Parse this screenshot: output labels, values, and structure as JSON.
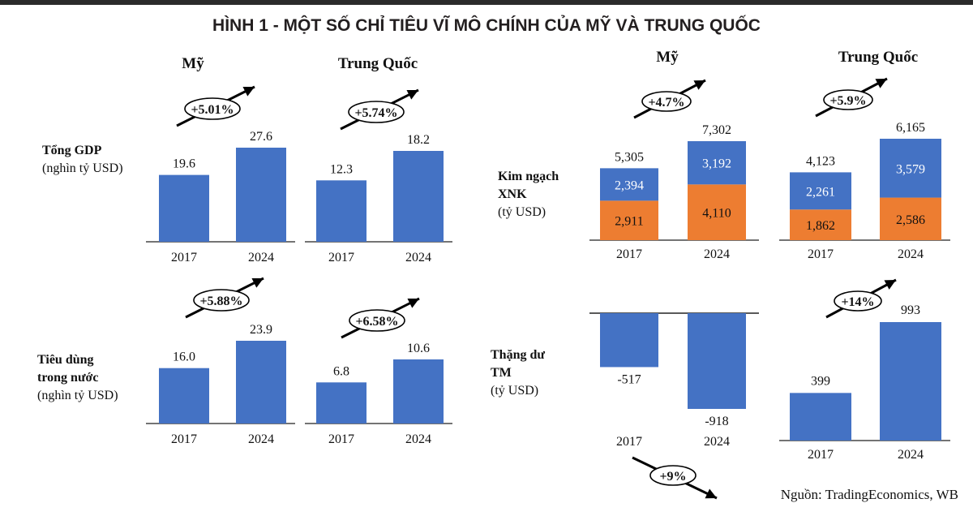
{
  "title": "HÌNH 1 - MỘT SỐ CHỈ TIÊU VĨ MÔ CHÍNH CỦA MỸ VÀ TRUNG QUỐC",
  "source": "Nguồn: TradingEconomics, WB",
  "colors": {
    "blue": "#4472c4",
    "orange": "#ed7d31",
    "text": "#111111",
    "axis": "#222222"
  },
  "chart_data": [
    {
      "type": "bar",
      "id": "gdp",
      "title_lines": [
        "Tổng GDP",
        "(nghìn tỷ USD)"
      ],
      "categories": [
        "2017",
        "2024"
      ],
      "panels": [
        {
          "country": "Mỹ",
          "values": [
            19.6,
            27.6
          ],
          "labels": [
            "19.6",
            "27.6"
          ],
          "change": "+5.01%",
          "arrow": "up"
        },
        {
          "country": "Trung Quốc",
          "values": [
            12.3,
            18.2
          ],
          "labels": [
            "12.3",
            "18.2"
          ],
          "change": "+5.74%",
          "arrow": "up"
        }
      ]
    },
    {
      "type": "bar",
      "id": "consumption",
      "title_lines": [
        "Tiêu dùng",
        "trong nước",
        "(nghìn tỷ USD)"
      ],
      "categories": [
        "2017",
        "2024"
      ],
      "panels": [
        {
          "country": "Mỹ",
          "values": [
            16.0,
            23.9
          ],
          "labels": [
            "16.0",
            "23.9"
          ],
          "change": "+5.88%",
          "arrow": "up"
        },
        {
          "country": "Trung Quốc",
          "values": [
            6.8,
            10.6
          ],
          "labels": [
            "6.8",
            "10.6"
          ],
          "change": "+6.58%",
          "arrow": "up"
        }
      ]
    },
    {
      "type": "bar",
      "stacked": true,
      "id": "trade",
      "title_lines": [
        "Kim ngạch",
        "XNK",
        "(tỷ USD)"
      ],
      "categories": [
        "2017",
        "2024"
      ],
      "panels": [
        {
          "country": "Mỹ",
          "totals": [
            "5,305",
            "7,302"
          ],
          "totals_values": [
            5305,
            7302
          ],
          "series": [
            {
              "color": "orange",
              "values": [
                2911,
                4110
              ],
              "labels": [
                "2,911",
                "4,110"
              ]
            },
            {
              "color": "blue",
              "values": [
                2394,
                3192
              ],
              "labels": [
                "2,394",
                "3,192"
              ]
            }
          ],
          "change": "+4.7%",
          "arrow": "up"
        },
        {
          "country": "Trung Quốc",
          "totals": [
            "4,123",
            "6,165"
          ],
          "totals_values": [
            4123,
            6165
          ],
          "series": [
            {
              "color": "orange",
              "values": [
                1862,
                2586
              ],
              "labels": [
                "1,862",
                "2,586"
              ]
            },
            {
              "color": "blue",
              "values": [
                2261,
                3579
              ],
              "labels": [
                "2,261",
                "3,579"
              ]
            }
          ],
          "change": "+5.9%",
          "arrow": "up"
        }
      ]
    },
    {
      "type": "bar",
      "id": "surplus",
      "title_lines": [
        "Thặng dư",
        "TM",
        "(tỷ USD)"
      ],
      "categories": [
        "2017",
        "2024"
      ],
      "panels": [
        {
          "country": "Mỹ",
          "values": [
            -517,
            -918
          ],
          "labels": [
            "-517",
            "-918"
          ],
          "change": "+9%",
          "arrow": "down"
        },
        {
          "country": "Trung Quốc",
          "values": [
            399,
            993
          ],
          "labels": [
            "399",
            "993"
          ],
          "change": "+14%",
          "arrow": "up"
        }
      ]
    }
  ]
}
